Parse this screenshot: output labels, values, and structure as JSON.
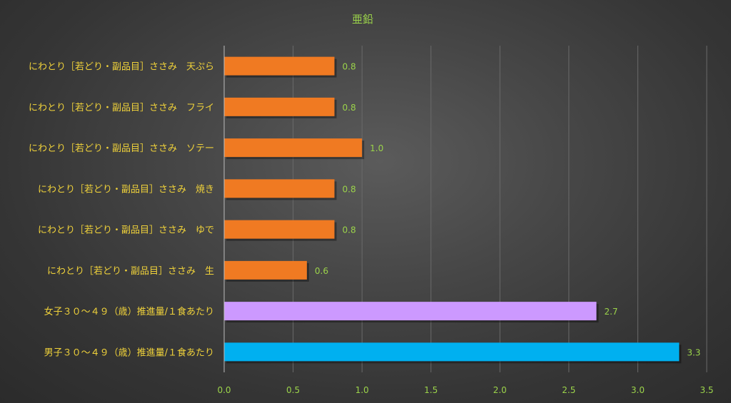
{
  "chart_data": {
    "type": "bar",
    "orientation": "horizontal",
    "title": "亜鉛",
    "categories": [
      "にわとり［若どり・副品目］ささみ　天ぷら",
      "にわとり［若どり・副品目］ささみ　フライ",
      "にわとり［若どり・副品目］ささみ　ソテー",
      "にわとり［若どり・副品目］ささみ　焼き",
      "にわとり［若どり・副品目］ささみ　ゆで",
      "にわとり［若どり・副品目］ささみ　生",
      "女子３０～４９（歳）推進量/１食あたり",
      "男子３０～４９（歳）推進量/１食あたり"
    ],
    "values": [
      0.8,
      0.8,
      1.0,
      0.8,
      0.8,
      0.6,
      2.7,
      3.3
    ],
    "value_labels": [
      "0.8",
      "0.8",
      "1.0",
      "0.8",
      "0.8",
      "0.6",
      "2.7",
      "3.3"
    ],
    "bar_colors": [
      "#f07a22",
      "#f07a22",
      "#f07a22",
      "#f07a22",
      "#f07a22",
      "#f07a22",
      "#cc99ff",
      "#00b0f0"
    ],
    "xlim": [
      0,
      3.5
    ],
    "xticks": [
      "0.0",
      "0.5",
      "1.0",
      "1.5",
      "2.0",
      "2.5",
      "3.0",
      "3.5"
    ],
    "grid": true,
    "xlabel": "",
    "ylabel": ""
  }
}
